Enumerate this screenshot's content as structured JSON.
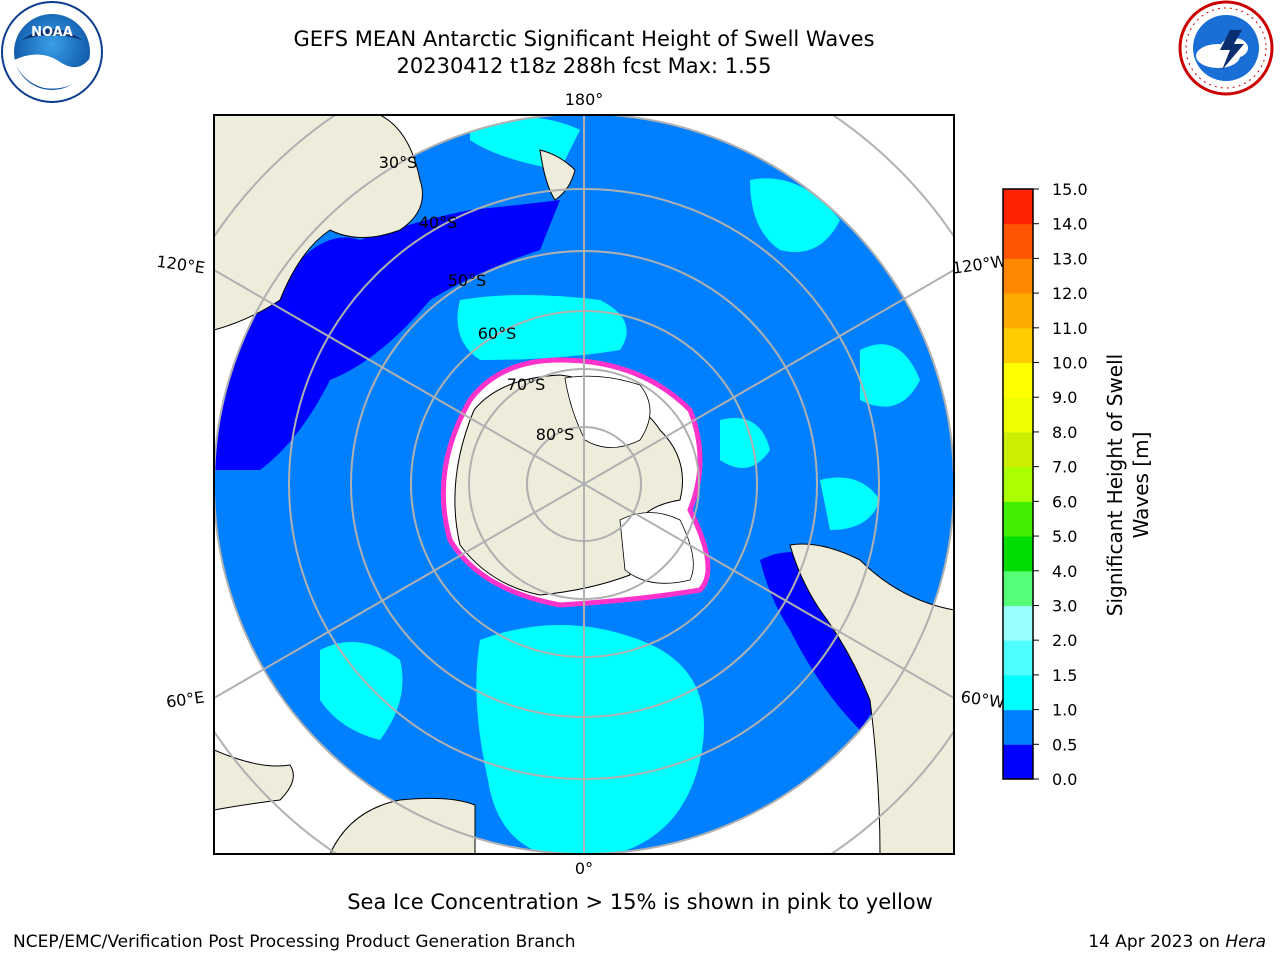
{
  "header": {
    "title_line1": "GEFS MEAN Antarctic Significant Height of Swell Waves",
    "title_line2": "20230412 t18z 288h fcst   Max: 1.55"
  },
  "logos": {
    "noaa": {
      "text": "NOAA",
      "ring_text": "NATIONAL OCEANIC AND ATMOSPHERIC ADMINISTRATION · U.S. DEPARTMENT OF COMMERCE"
    },
    "nws": {
      "ring_text": "NATIONAL WEATHER SERVICE"
    }
  },
  "map": {
    "longitude_labels": {
      "top": "180°",
      "upper_left": "120°E",
      "upper_right": "120°W",
      "lower_left": "60°E",
      "lower_right": "60°W",
      "bottom": "0°"
    },
    "latitude_labels": [
      "30°S",
      "40°S",
      "50°S",
      "60°S",
      "70°S",
      "80°S"
    ],
    "colors": {
      "land": "#eeecda",
      "ice_sheet": "#ffffff",
      "sea_ice_pink": "#ff33cc",
      "swell_0_0_5": "#0000ff",
      "swell_0_5_1_0": "#0080ff",
      "swell_1_0_1_5": "#00ffff",
      "swell_1_5_2_0": "#4dffff"
    }
  },
  "colorbar": {
    "label_line1": "Significant Height of Swell",
    "label_line2": "Waves [m]",
    "ticks": [
      "0.0",
      "0.5",
      "1.0",
      "1.5",
      "2.0",
      "3.0",
      "4.0",
      "5.0",
      "6.0",
      "7.0",
      "8.0",
      "9.0",
      "10.0",
      "11.0",
      "12.0",
      "13.0",
      "14.0",
      "15.0"
    ],
    "colors": [
      "#0000ff",
      "#0080ff",
      "#00ffff",
      "#4dffff",
      "#99ffff",
      "#55ff77",
      "#00dd00",
      "#44ee00",
      "#aaff00",
      "#ccee00",
      "#eeff00",
      "#ffff00",
      "#ffcc00",
      "#ffaa00",
      "#ff8800",
      "#ff5500",
      "#ff2200"
    ]
  },
  "footer": {
    "note": "Sea Ice Concentration > 15% is shown in pink to yellow",
    "credit": "NCEP/EMC/Verification Post Processing Product Generation Branch",
    "date": "14 Apr 2023 on",
    "machine": "Hera"
  }
}
